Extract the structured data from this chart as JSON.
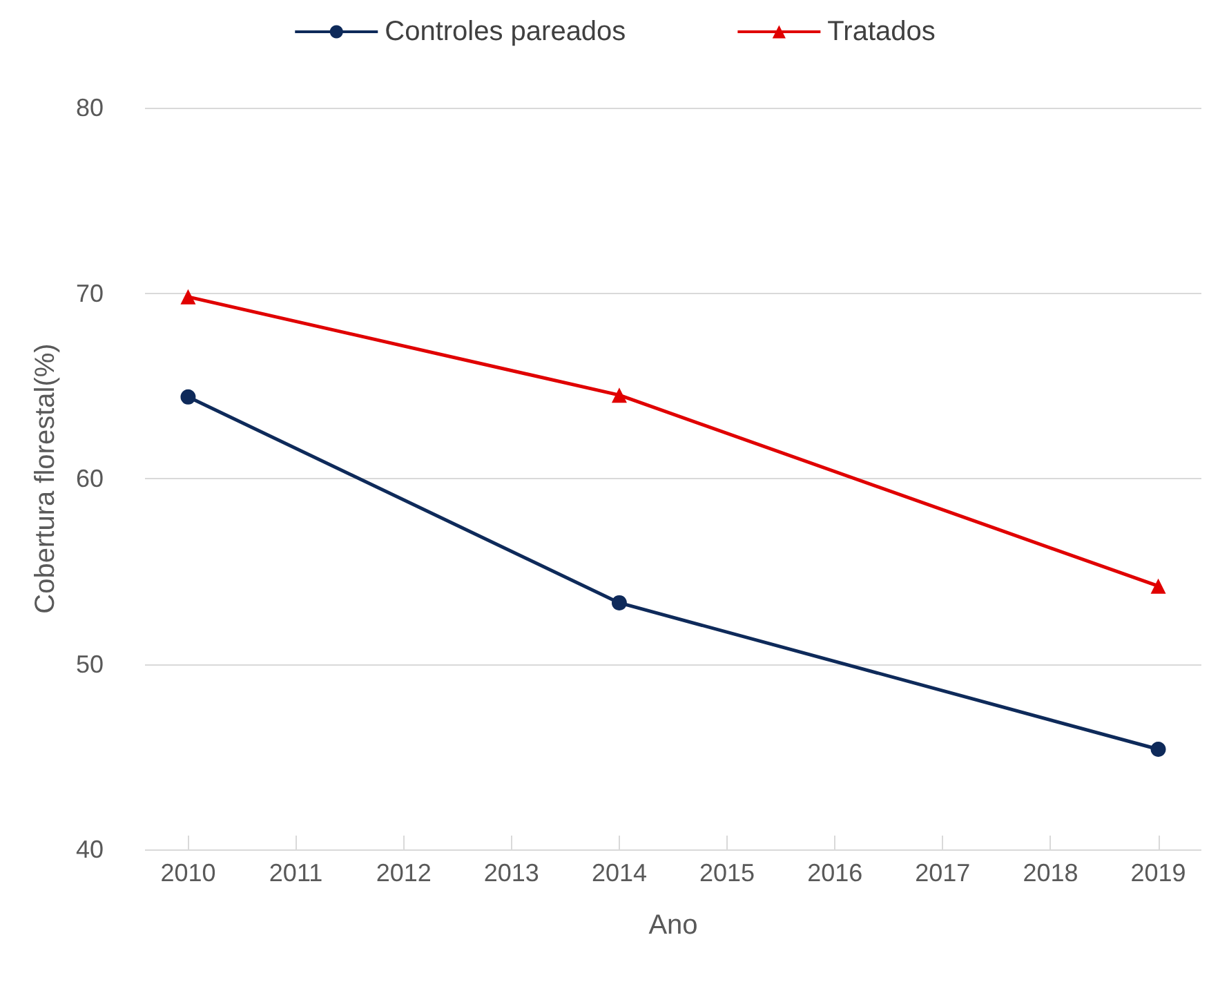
{
  "chart_data": {
    "type": "line",
    "xlabel": "Ano",
    "ylabel": "Cobertura florestal(%)",
    "xlim": [
      2009.6,
      2019.4
    ],
    "xticks": [
      2010,
      2011,
      2012,
      2013,
      2014,
      2015,
      2016,
      2017,
      2018,
      2019
    ],
    "ylim": [
      40,
      80
    ],
    "yticks": [
      40,
      50,
      60,
      70,
      80
    ],
    "grid": "y",
    "legend": "top",
    "series": [
      {
        "name": "Controles pareados",
        "color": "#0e2a5a",
        "marker": "circle",
        "x": [
          2010,
          2014,
          2019
        ],
        "values": [
          64.4,
          53.3,
          45.4
        ]
      },
      {
        "name": "Tratados",
        "color": "#e00000",
        "marker": "triangle",
        "x": [
          2010,
          2014,
          2019
        ],
        "values": [
          69.8,
          64.5,
          54.2
        ]
      }
    ]
  }
}
